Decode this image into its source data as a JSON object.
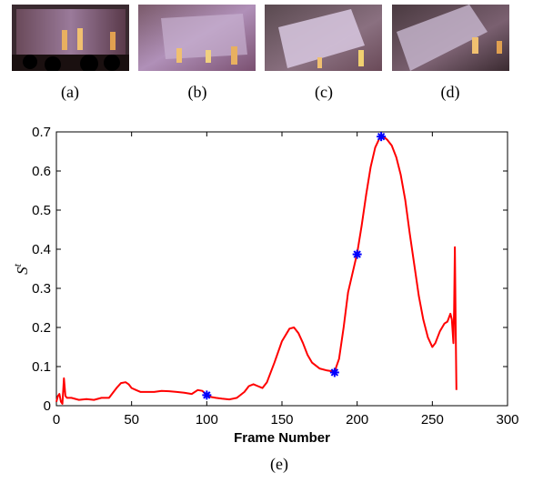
{
  "thumbnails": [
    {
      "caption": "(a)"
    },
    {
      "caption": "(b)"
    },
    {
      "caption": "(c)"
    },
    {
      "caption": "(d)"
    }
  ],
  "figure_caption": "(e)",
  "colors": {
    "line": "#ff0000",
    "marker": "#0000ff",
    "axis": "#000000"
  },
  "chart_data": {
    "type": "line",
    "xlabel": "Frame Number",
    "ylabel": "S",
    "ylabel_superscript": "t",
    "xlim": [
      0,
      300
    ],
    "ylim": [
      0,
      0.7
    ],
    "xticks": [
      0,
      50,
      100,
      150,
      200,
      250,
      300
    ],
    "yticks": [
      0,
      0.1,
      0.2,
      0.3,
      0.4,
      0.5,
      0.6,
      0.7
    ],
    "grid": false,
    "series": [
      {
        "x": [
          0,
          1,
          2,
          3,
          4,
          5,
          6,
          7,
          8,
          10,
          15,
          20,
          25,
          30,
          35,
          40,
          43,
          46,
          48,
          50,
          53,
          56,
          60,
          65,
          70,
          75,
          80,
          85,
          90,
          94,
          97,
          100,
          103,
          106,
          110,
          115,
          120,
          125,
          128,
          131,
          134,
          137,
          140,
          145,
          150,
          155,
          158,
          161,
          164,
          167,
          170,
          175,
          180,
          185,
          188,
          191,
          194,
          197,
          200,
          203,
          206,
          209,
          212,
          215,
          217,
          220,
          223,
          226,
          229,
          232,
          235,
          238,
          241,
          244,
          247,
          250,
          252,
          255,
          258,
          260,
          262,
          263,
          264,
          264.5,
          265,
          265.5,
          266
        ],
        "y": [
          0.01,
          0.025,
          0.03,
          0.01,
          0.005,
          0.07,
          0.025,
          0.02,
          0.02,
          0.02,
          0.015,
          0.017,
          0.015,
          0.02,
          0.02,
          0.045,
          0.058,
          0.06,
          0.055,
          0.045,
          0.04,
          0.035,
          0.035,
          0.035,
          0.038,
          0.037,
          0.035,
          0.033,
          0.03,
          0.04,
          0.038,
          0.027,
          0.022,
          0.02,
          0.018,
          0.016,
          0.02,
          0.035,
          0.05,
          0.055,
          0.05,
          0.045,
          0.06,
          0.11,
          0.165,
          0.197,
          0.2,
          0.185,
          0.16,
          0.13,
          0.11,
          0.095,
          0.09,
          0.087,
          0.12,
          0.2,
          0.29,
          0.34,
          0.39,
          0.46,
          0.54,
          0.61,
          0.66,
          0.685,
          0.69,
          0.68,
          0.665,
          0.635,
          0.59,
          0.525,
          0.44,
          0.36,
          0.28,
          0.22,
          0.175,
          0.15,
          0.16,
          0.19,
          0.21,
          0.215,
          0.235,
          0.22,
          0.16,
          0.25,
          0.405,
          0.2,
          0.04
        ]
      }
    ],
    "markers": {
      "x": [
        100,
        185,
        200,
        216
      ],
      "y": [
        0.027,
        0.085,
        0.387,
        0.688
      ]
    }
  }
}
